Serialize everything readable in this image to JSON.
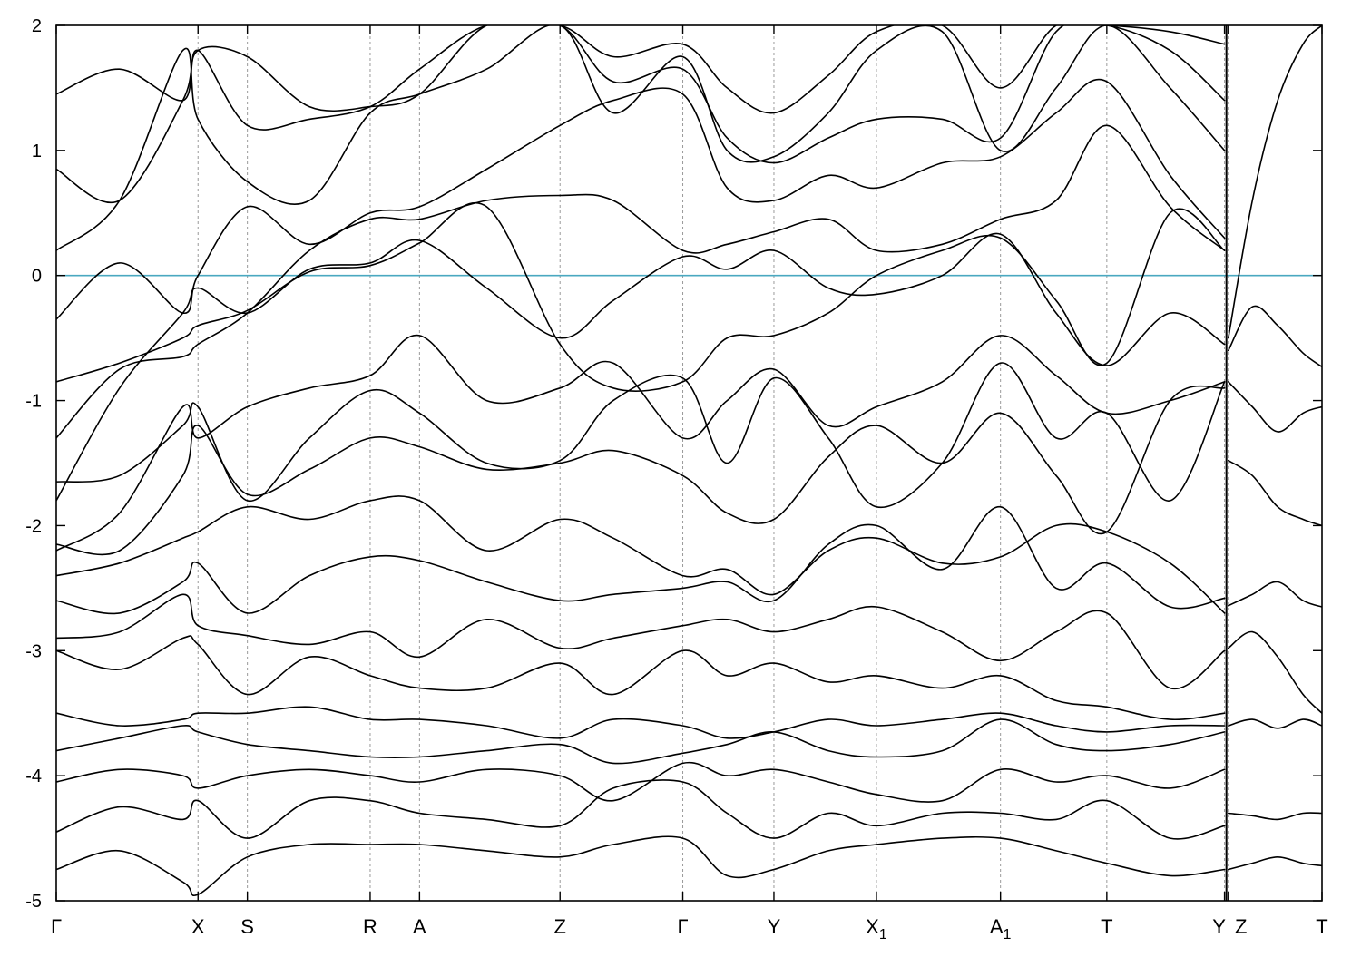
{
  "chart_data": {
    "type": "line",
    "title": "",
    "xlabel": "",
    "ylabel": "",
    "ylim": [
      -5,
      2
    ],
    "yticks": [
      2,
      1,
      0,
      -1,
      -2,
      -3,
      -4,
      -5
    ],
    "fermi_level": 0,
    "fermi_color": "#4aa8c0",
    "band_color": "#000000",
    "grid": false,
    "kpath": [
      {
        "label": "Γ",
        "sub": "",
        "pos": 0.0
      },
      {
        "label": "X",
        "sub": "",
        "pos": 1.12
      },
      {
        "label": "S",
        "sub": "",
        "pos": 1.51
      },
      {
        "label": "R",
        "sub": "",
        "pos": 2.48
      },
      {
        "label": "A",
        "sub": "",
        "pos": 2.87
      },
      {
        "label": "Z",
        "sub": "",
        "pos": 3.98
      },
      {
        "label": "Γ",
        "sub": "",
        "pos": 4.95
      },
      {
        "label": "Y",
        "sub": "",
        "pos": 5.67
      },
      {
        "label": "X",
        "sub": "1",
        "pos": 6.48
      },
      {
        "label": "A",
        "sub": "1",
        "pos": 7.46
      },
      {
        "label": "T",
        "sub": "",
        "pos": 8.3
      },
      {
        "label": "Y",
        "sub": "",
        "pos": 9.23
      },
      {
        "label": "Z",
        "sub": "",
        "pos": 9.26
      },
      {
        "label": "T",
        "sub": "",
        "pos": 10.0
      }
    ],
    "segment_break_pos": 9.245,
    "series": [
      {
        "x": [
          0,
          0.5,
          1.0,
          1.12,
          1.51,
          2.0,
          2.48,
          2.87,
          3.4,
          3.98,
          4.4,
          4.95,
          5.3,
          5.67,
          6.1,
          6.48,
          7.0,
          7.46,
          7.9,
          8.3,
          8.8,
          9.23
        ],
        "y": [
          -1.8,
          -0.9,
          -0.3,
          -0.1,
          -0.3,
          0.05,
          0.1,
          0.28,
          -0.1,
          -0.5,
          -0.2,
          0.15,
          0.05,
          0.2,
          -0.1,
          -0.15,
          0.0,
          0.33,
          -0.3,
          -0.72,
          -0.3,
          -0.55
        ]
      },
      {
        "x": [
          0,
          0.5,
          1.0,
          1.12,
          1.51,
          2.0,
          2.48,
          2.87,
          3.4,
          3.98,
          4.4,
          4.95,
          5.3,
          5.67,
          6.1,
          6.48,
          7.0,
          7.46,
          7.9,
          8.3,
          8.8,
          9.23
        ],
        "y": [
          -0.85,
          -0.7,
          -0.5,
          -0.4,
          -0.28,
          0.03,
          0.08,
          0.26,
          0.55,
          -0.55,
          -0.9,
          -0.85,
          -0.5,
          -0.48,
          -0.3,
          0.0,
          0.2,
          0.3,
          -0.2,
          -0.7,
          0.5,
          0.2
        ]
      },
      {
        "x": [
          0,
          0.5,
          1.0,
          1.12,
          1.51,
          2.0,
          2.48,
          2.87,
          3.4,
          3.98,
          4.4,
          4.95,
          5.3,
          5.67,
          6.1,
          6.48,
          7.0,
          7.46,
          7.9,
          8.3,
          8.8,
          9.23
        ],
        "y": [
          -1.3,
          -0.75,
          -0.65,
          -0.55,
          -0.3,
          0.2,
          0.45,
          0.45,
          0.6,
          0.64,
          0.6,
          0.2,
          0.25,
          0.35,
          0.45,
          0.2,
          0.25,
          0.45,
          0.6,
          1.2,
          0.55,
          0.2
        ]
      },
      {
        "x": [
          0,
          0.5,
          1.0,
          1.12,
          1.51,
          2.0,
          2.48,
          2.87,
          3.4,
          3.98,
          4.4,
          4.95,
          5.3,
          5.67,
          6.1,
          6.48,
          7.0,
          7.46,
          7.9,
          8.3,
          8.8,
          9.23
        ],
        "y": [
          -0.35,
          0.1,
          -0.3,
          0.0,
          0.55,
          0.25,
          0.5,
          0.55,
          0.85,
          1.2,
          1.4,
          1.45,
          0.7,
          0.6,
          0.8,
          0.7,
          0.9,
          0.95,
          1.3,
          1.55,
          0.8,
          0.3
        ]
      },
      {
        "x": [
          0,
          0.5,
          1.0,
          1.12,
          1.51,
          2.0,
          2.48,
          2.87,
          3.4,
          3.98,
          4.4,
          4.95,
          5.3,
          5.67,
          6.1,
          6.48,
          7.0,
          7.46,
          7.9,
          8.3,
          8.8,
          9.23
        ],
        "y": [
          0.2,
          0.6,
          1.8,
          1.25,
          0.75,
          0.6,
          1.3,
          1.45,
          1.65,
          2.0,
          1.3,
          1.75,
          1.0,
          0.95,
          1.3,
          1.8,
          1.95,
          1.0,
          1.5,
          2.0,
          1.5,
          1.0
        ]
      },
      {
        "x": [
          0,
          0.5,
          1.0,
          1.12,
          1.51,
          2.0,
          2.48,
          2.87,
          3.4,
          3.98,
          4.4,
          4.95,
          5.3,
          5.67,
          6.1,
          6.48,
          7.0,
          7.46,
          7.9,
          8.3,
          8.8,
          9.23
        ],
        "y": [
          0.85,
          0.6,
          1.4,
          1.8,
          1.75,
          1.35,
          1.35,
          1.45,
          2.0,
          2.0,
          1.55,
          1.65,
          1.1,
          0.9,
          1.1,
          1.25,
          1.25,
          1.1,
          1.95,
          2.0,
          1.8,
          1.4
        ]
      },
      {
        "x": [
          0,
          0.5,
          1.0,
          1.12,
          1.51,
          2.0,
          2.48,
          2.87,
          3.4,
          3.98,
          4.4,
          4.95,
          5.3,
          5.67,
          6.1,
          6.48,
          7.0,
          7.46,
          7.9,
          8.3,
          8.8,
          9.23
        ],
        "y": [
          1.45,
          1.65,
          1.4,
          1.8,
          1.2,
          1.25,
          1.35,
          1.65,
          2.0,
          2.0,
          1.75,
          1.85,
          1.5,
          1.3,
          1.6,
          1.95,
          2.0,
          1.5,
          2.0,
          2.0,
          1.95,
          1.85
        ]
      },
      {
        "x": [
          0,
          0.5,
          1.0,
          1.12,
          1.51,
          2.0,
          2.48,
          2.87,
          3.4,
          3.98,
          4.4,
          4.95,
          5.3,
          5.67,
          6.1,
          6.48,
          7.0,
          7.46,
          7.9,
          8.3,
          8.8,
          9.23
        ],
        "y": [
          -2.2,
          -1.9,
          -1.05,
          -1.3,
          -1.05,
          -0.9,
          -0.8,
          -0.48,
          -1.0,
          -0.9,
          -0.7,
          -1.3,
          -1.0,
          -0.75,
          -1.2,
          -1.05,
          -0.85,
          -0.48,
          -0.8,
          -1.1,
          -1.0,
          -0.85
        ]
      },
      {
        "x": [
          0,
          0.5,
          1.0,
          1.12,
          1.51,
          2.0,
          2.48,
          2.87,
          3.4,
          3.98,
          4.4,
          4.95,
          5.3,
          5.67,
          6.1,
          6.48,
          7.0,
          7.46,
          7.9,
          8.3,
          8.8,
          9.23
        ],
        "y": [
          -1.65,
          -1.6,
          -1.2,
          -1.05,
          -1.8,
          -1.3,
          -0.92,
          -1.1,
          -1.5,
          -1.48,
          -1.0,
          -0.82,
          -1.5,
          -0.82,
          -1.3,
          -1.85,
          -1.5,
          -0.7,
          -1.3,
          -1.1,
          -1.8,
          -0.85
        ]
      },
      {
        "x": [
          0,
          0.5,
          1.0,
          1.12,
          1.51,
          2.0,
          2.48,
          2.87,
          3.4,
          3.98,
          4.4,
          4.95,
          5.3,
          5.67,
          6.1,
          6.48,
          7.0,
          7.46,
          7.9,
          8.3,
          8.8,
          9.23
        ],
        "y": [
          -2.15,
          -2.2,
          -1.6,
          -1.2,
          -1.75,
          -1.55,
          -1.3,
          -1.37,
          -1.55,
          -1.5,
          -1.4,
          -1.6,
          -1.9,
          -1.95,
          -1.45,
          -1.2,
          -1.5,
          -1.1,
          -1.6,
          -2.05,
          -1.0,
          -0.9
        ]
      },
      {
        "x": [
          0,
          0.5,
          1.0,
          1.12,
          1.51,
          2.0,
          2.48,
          2.87,
          3.4,
          3.98,
          4.4,
          4.95,
          5.3,
          5.67,
          6.1,
          6.48,
          7.0,
          7.46,
          7.9,
          8.3,
          8.8,
          9.23
        ],
        "y": [
          -2.4,
          -2.3,
          -2.1,
          -2.05,
          -1.85,
          -1.95,
          -1.8,
          -1.8,
          -2.2,
          -1.95,
          -2.1,
          -2.4,
          -2.35,
          -2.55,
          -2.2,
          -2.1,
          -2.3,
          -2.25,
          -2.0,
          -2.05,
          -2.3,
          -2.7
        ]
      },
      {
        "x": [
          0,
          0.5,
          1.0,
          1.12,
          1.51,
          2.0,
          2.48,
          2.87,
          3.4,
          3.98,
          4.4,
          4.95,
          5.3,
          5.67,
          6.1,
          6.48,
          7.0,
          7.46,
          7.9,
          8.3,
          8.8,
          9.23
        ],
        "y": [
          -2.6,
          -2.7,
          -2.45,
          -2.3,
          -2.7,
          -2.4,
          -2.25,
          -2.28,
          -2.45,
          -2.6,
          -2.55,
          -2.5,
          -2.45,
          -2.6,
          -2.15,
          -2.0,
          -2.35,
          -1.85,
          -2.5,
          -2.3,
          -2.65,
          -2.58
        ]
      },
      {
        "x": [
          0,
          0.5,
          1.0,
          1.12,
          1.51,
          2.0,
          2.48,
          2.87,
          3.4,
          3.98,
          4.4,
          4.95,
          5.3,
          5.67,
          6.1,
          6.48,
          7.0,
          7.46,
          7.9,
          8.3,
          8.8,
          9.23
        ],
        "y": [
          -2.9,
          -2.85,
          -2.55,
          -2.8,
          -2.88,
          -2.95,
          -2.85,
          -3.05,
          -2.75,
          -2.98,
          -2.9,
          -2.8,
          -2.75,
          -2.85,
          -2.75,
          -2.65,
          -2.85,
          -3.08,
          -2.85,
          -2.7,
          -3.3,
          -3.0
        ]
      },
      {
        "x": [
          0,
          0.5,
          1.0,
          1.12,
          1.51,
          2.0,
          2.48,
          2.87,
          3.4,
          3.98,
          4.4,
          4.95,
          5.3,
          5.67,
          6.1,
          6.48,
          7.0,
          7.46,
          7.9,
          8.3,
          8.8,
          9.23
        ],
        "y": [
          -3.0,
          -3.15,
          -2.9,
          -2.95,
          -3.35,
          -3.05,
          -3.2,
          -3.3,
          -3.3,
          -3.1,
          -3.35,
          -3.0,
          -3.2,
          -3.1,
          -3.25,
          -3.2,
          -3.3,
          -3.2,
          -3.4,
          -3.45,
          -3.55,
          -3.5
        ]
      },
      {
        "x": [
          0,
          0.5,
          1.0,
          1.12,
          1.51,
          2.0,
          2.48,
          2.87,
          3.4,
          3.98,
          4.4,
          4.95,
          5.3,
          5.67,
          6.1,
          6.48,
          7.0,
          7.46,
          7.9,
          8.3,
          8.8,
          9.23
        ],
        "y": [
          -3.5,
          -3.6,
          -3.55,
          -3.5,
          -3.5,
          -3.45,
          -3.55,
          -3.55,
          -3.6,
          -3.7,
          -3.55,
          -3.6,
          -3.7,
          -3.65,
          -3.55,
          -3.6,
          -3.55,
          -3.5,
          -3.6,
          -3.65,
          -3.6,
          -3.6
        ]
      },
      {
        "x": [
          0,
          0.5,
          1.0,
          1.12,
          1.51,
          2.0,
          2.48,
          2.87,
          3.4,
          3.98,
          4.4,
          4.95,
          5.3,
          5.67,
          6.1,
          6.48,
          7.0,
          7.46,
          7.9,
          8.3,
          8.8,
          9.23
        ],
        "y": [
          -3.8,
          -3.7,
          -3.6,
          -3.65,
          -3.75,
          -3.8,
          -3.85,
          -3.85,
          -3.8,
          -3.75,
          -3.9,
          -3.82,
          -3.75,
          -3.65,
          -3.8,
          -3.85,
          -3.8,
          -3.55,
          -3.75,
          -3.8,
          -3.75,
          -3.65
        ]
      },
      {
        "x": [
          0,
          0.5,
          1.0,
          1.12,
          1.51,
          2.0,
          2.48,
          2.87,
          3.4,
          3.98,
          4.4,
          4.95,
          5.3,
          5.67,
          6.1,
          6.48,
          7.0,
          7.46,
          7.9,
          8.3,
          8.8,
          9.23
        ],
        "y": [
          -4.05,
          -3.95,
          -4.0,
          -4.1,
          -4.0,
          -3.95,
          -4.0,
          -4.05,
          -3.95,
          -4.0,
          -4.2,
          -3.9,
          -4.0,
          -3.95,
          -4.05,
          -4.15,
          -4.2,
          -3.95,
          -4.05,
          -4.0,
          -4.1,
          -3.95
        ]
      },
      {
        "x": [
          0,
          0.5,
          1.0,
          1.12,
          1.51,
          2.0,
          2.48,
          2.87,
          3.4,
          3.98,
          4.4,
          4.95,
          5.3,
          5.67,
          6.1,
          6.48,
          7.0,
          7.46,
          7.9,
          8.3,
          8.8,
          9.23
        ],
        "y": [
          -4.45,
          -4.25,
          -4.35,
          -4.2,
          -4.5,
          -4.2,
          -4.2,
          -4.3,
          -4.35,
          -4.4,
          -4.1,
          -4.05,
          -4.3,
          -4.5,
          -4.3,
          -4.4,
          -4.3,
          -4.3,
          -4.35,
          -4.2,
          -4.5,
          -4.4
        ]
      },
      {
        "x": [
          0,
          0.5,
          1.0,
          1.12,
          1.51,
          2.0,
          2.48,
          2.87,
          3.4,
          3.98,
          4.4,
          4.95,
          5.3,
          5.67,
          6.1,
          6.48,
          7.0,
          7.46,
          7.9,
          8.3,
          8.8,
          9.23
        ],
        "y": [
          -4.75,
          -4.6,
          -4.85,
          -4.95,
          -4.65,
          -4.55,
          -4.55,
          -4.55,
          -4.6,
          -4.65,
          -4.55,
          -4.5,
          -4.8,
          -4.75,
          -4.6,
          -4.55,
          -4.5,
          -4.5,
          -4.6,
          -4.7,
          -4.8,
          -4.75
        ]
      },
      {
        "x": [
          9.26,
          9.45,
          9.65,
          9.85,
          10.0
        ],
        "y": [
          -0.5,
          0.6,
          1.4,
          1.85,
          2.0
        ]
      },
      {
        "x": [
          9.26,
          9.45,
          9.65,
          9.85,
          10.0
        ],
        "y": [
          -0.6,
          -0.25,
          -0.4,
          -0.62,
          -0.73
        ]
      },
      {
        "x": [
          9.26,
          9.45,
          9.65,
          9.85,
          10.0
        ],
        "y": [
          -1.48,
          -1.6,
          -1.85,
          -1.95,
          -2.0
        ]
      },
      {
        "x": [
          9.26,
          9.45,
          9.65,
          9.85,
          10.0
        ],
        "y": [
          -0.85,
          -1.05,
          -1.25,
          -1.1,
          -1.05
        ]
      },
      {
        "x": [
          9.26,
          9.45,
          9.65,
          9.85,
          10.0
        ],
        "y": [
          -2.64,
          -2.55,
          -2.45,
          -2.6,
          -2.65
        ]
      },
      {
        "x": [
          9.26,
          9.45,
          9.65,
          9.85,
          10.0
        ],
        "y": [
          -2.98,
          -2.85,
          -3.05,
          -3.35,
          -3.5
        ]
      },
      {
        "x": [
          9.26,
          9.45,
          9.65,
          9.85,
          10.0
        ],
        "y": [
          -3.6,
          -3.55,
          -3.62,
          -3.55,
          -3.6
        ]
      },
      {
        "x": [
          9.26,
          9.45,
          9.65,
          9.85,
          10.0
        ],
        "y": [
          -4.3,
          -4.32,
          -4.35,
          -4.3,
          -4.3
        ]
      },
      {
        "x": [
          9.26,
          9.45,
          9.65,
          9.85,
          10.0
        ],
        "y": [
          -4.75,
          -4.7,
          -4.65,
          -4.7,
          -4.72
        ]
      }
    ]
  }
}
